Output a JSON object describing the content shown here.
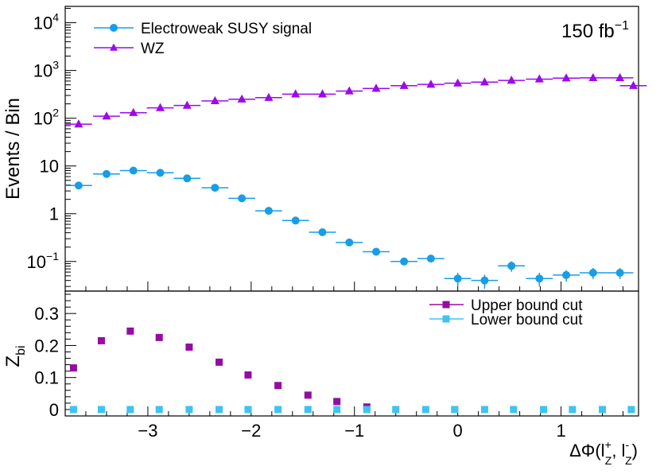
{
  "chart_data": [
    {
      "type": "scatter",
      "panel": "upper",
      "ylabel": "Events / Bin",
      "lumi_label": {
        "base": "150 fb",
        "exponent": "−1"
      },
      "yscale": "log",
      "xlim": [
        -3.8,
        1.75
      ],
      "ylim": [
        0.024,
        22000
      ],
      "x_ticks": [
        -3,
        -2,
        -1,
        0,
        1
      ],
      "y_ticks": [
        {
          "value": 0.1,
          "base": "10",
          "exponent": "−1"
        },
        {
          "value": 1,
          "base": "1",
          "exponent": ""
        },
        {
          "value": 10,
          "base": "10",
          "exponent": ""
        },
        {
          "value": 100,
          "base": "10",
          "exponent": "2"
        },
        {
          "value": 1000,
          "base": "10",
          "exponent": "3"
        },
        {
          "value": 10000,
          "base": "10",
          "exponent": "4"
        }
      ],
      "legend_position": "top-left",
      "series": [
        {
          "name": "Electroweak SUSY signal",
          "color": "#179ee6",
          "marker": "circle",
          "x": [
            -3.67,
            -3.4,
            -3.14,
            -2.88,
            -2.62,
            -2.35,
            -2.09,
            -1.83,
            -1.57,
            -1.31,
            -1.05,
            -0.79,
            -0.52,
            -0.26,
            0.0,
            0.26,
            0.52,
            0.79,
            1.05,
            1.31,
            1.57
          ],
          "y": [
            3.9,
            6.8,
            8.0,
            7.2,
            5.5,
            3.5,
            2.1,
            1.15,
            0.72,
            0.41,
            0.25,
            0.16,
            0.1,
            0.115,
            0.044,
            0.04,
            0.081,
            0.044,
            0.052,
            0.058,
            0.058
          ],
          "err_low": [
            0,
            0,
            0,
            0,
            0,
            0,
            0,
            0,
            0,
            0,
            0,
            0,
            0,
            0,
            0.014,
            0.013,
            0.02,
            0.014,
            0.014,
            0.015,
            0.015
          ],
          "err_high": [
            0,
            0,
            0,
            0,
            0,
            0,
            0,
            0,
            0,
            0,
            0,
            0,
            0,
            0,
            0.014,
            0.013,
            0.02,
            0.014,
            0.014,
            0.015,
            0.015
          ]
        },
        {
          "name": "WZ",
          "color": "#9b0aea",
          "marker": "triangle",
          "x": [
            -3.67,
            -3.4,
            -3.14,
            -2.88,
            -2.62,
            -2.35,
            -2.09,
            -1.83,
            -1.57,
            -1.31,
            -1.05,
            -0.79,
            -0.52,
            -0.26,
            0.0,
            0.26,
            0.52,
            0.79,
            1.05,
            1.31,
            1.57,
            1.7
          ],
          "y": [
            75,
            110,
            130,
            165,
            185,
            230,
            250,
            270,
            320,
            320,
            370,
            420,
            480,
            510,
            540,
            570,
            620,
            660,
            690,
            700,
            700,
            480
          ],
          "err_low": [],
          "err_high": []
        }
      ]
    },
    {
      "type": "scatter",
      "panel": "lower",
      "ylabel": {
        "base": "Z",
        "subscript": "bi"
      },
      "xlabel": {
        "prefix": "ΔΦ(l",
        "sup1": "+",
        "sub1": "Z",
        "mid": ", l",
        "sup2": "-",
        "sub2": "Z",
        "suffix": ")"
      },
      "xlim": [
        -3.8,
        1.75
      ],
      "ylim": [
        -0.02,
        0.37
      ],
      "x_ticks": [
        -3,
        -2,
        -1,
        0,
        1
      ],
      "x_tick_labels": [
        "−3",
        "−2",
        "−1",
        "0",
        "1"
      ],
      "y_ticks": [
        0,
        0.1,
        0.2,
        0.3
      ],
      "y_tick_labels": [
        "0",
        "0.1",
        "0.2",
        "0.3"
      ],
      "legend_position": "top-right",
      "series": [
        {
          "name": "Upper bound cut",
          "color": "#950ca3",
          "marker": "square",
          "x": [
            -3.72,
            -3.45,
            -3.17,
            -2.89,
            -2.6,
            -2.31,
            -2.03,
            -1.74,
            -1.45,
            -1.17,
            -0.88
          ],
          "y": [
            0.13,
            0.215,
            0.245,
            0.225,
            0.195,
            0.148,
            0.108,
            0.075,
            0.045,
            0.025,
            0.008
          ]
        },
        {
          "name": "Lower bound cut",
          "color": "#3fc3f0",
          "marker": "square",
          "x": [
            -3.72,
            -3.45,
            -3.17,
            -2.89,
            -2.6,
            -2.31,
            -2.03,
            -1.74,
            -1.45,
            -1.17,
            -0.88,
            -0.6,
            -0.31,
            -0.03,
            0.26,
            0.54,
            0.83,
            1.11,
            1.4,
            1.68
          ],
          "y": [
            0,
            0,
            0,
            0,
            0,
            0,
            0,
            0,
            0,
            0,
            0,
            0,
            0,
            0,
            0,
            0,
            0,
            0,
            0,
            0
          ]
        }
      ]
    }
  ]
}
